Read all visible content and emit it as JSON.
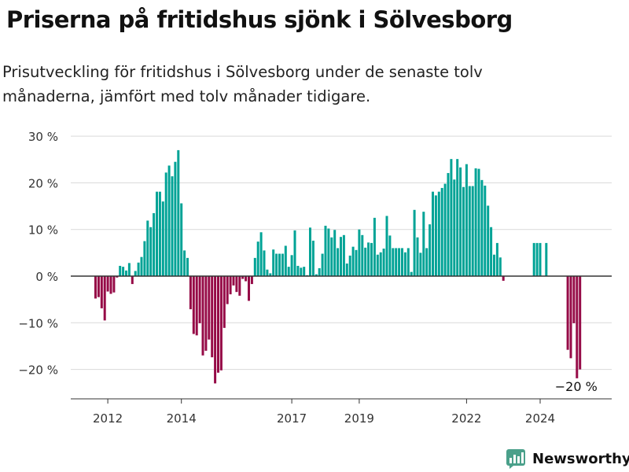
{
  "header": {
    "title": "Priserna på fritidshus sjönk i Sölvesborg",
    "subtitle": "Prisutveckling för fritidshus i Sölvesborg under de senaste tolv månaderna, jämfört med tolv månader tidigare."
  },
  "brand": {
    "name": "Newsworthy",
    "icon": "newsworthy-logo-icon",
    "color": "#4aa08a"
  },
  "colors": {
    "positive": "#00a396",
    "negative": "#960b47",
    "grid": "#d9d9d9",
    "zero": "#333333",
    "text": "#333333"
  },
  "chart_data": {
    "type": "bar",
    "title": "Priserna på fritidshus sjönk i Sölvesborg",
    "subtitle": "Prisutveckling för fritidshus i Sölvesborg under de senaste tolv månaderna, jämfört med tolv månader tidigare.",
    "xlabel": "",
    "ylabel": "",
    "ylim": [
      -26,
      30
    ],
    "y_ticks": [
      30,
      20,
      10,
      0,
      -10,
      -20
    ],
    "y_tick_labels": [
      "30 %",
      "20 %",
      "10 %",
      "0 %",
      "−10 %",
      "−20 %"
    ],
    "x_tick_labels": [
      "2012",
      "2014",
      "2017",
      "2019",
      "2022",
      "2024"
    ],
    "x_tick_index": [
      4,
      28,
      64,
      86,
      121,
      145
    ],
    "grid": true,
    "annotation": {
      "text": "−20 %",
      "index": 157
    },
    "values": [
      -4.8,
      -4.5,
      -6.9,
      -9.5,
      -3.3,
      -3.8,
      -3.5,
      -0.3,
      2.2,
      2.0,
      1.2,
      2.8,
      -1.7,
      1.1,
      2.9,
      4.1,
      7.5,
      11.9,
      10.5,
      13.5,
      18.1,
      18.1,
      16.0,
      22.2,
      23.7,
      21.4,
      24.5,
      27.0,
      15.6,
      5.5,
      3.9,
      -7.1,
      -12.4,
      -12.7,
      -10.1,
      -17.0,
      -16.0,
      -13.6,
      -17.4,
      -23.0,
      -20.7,
      -20.2,
      -11.1,
      -6.0,
      -3.9,
      -2.0,
      -3.4,
      -4.2,
      -0.6,
      -1.1,
      -5.3,
      -1.7,
      3.9,
      7.4,
      9.4,
      5.5,
      1.4,
      0.6,
      5.7,
      4.8,
      4.8,
      4.8,
      6.5,
      2.0,
      4.5,
      9.8,
      2.2,
      1.8,
      2.0,
      0.2,
      10.4,
      7.6,
      0.4,
      1.7,
      4.8,
      10.8,
      10.2,
      8.3,
      9.9,
      6.0,
      8.4,
      8.8,
      2.7,
      4.4,
      6.3,
      5.6,
      10.0,
      8.8,
      6.1,
      7.2,
      7.1,
      12.5,
      4.6,
      5.1,
      5.9,
      12.9,
      8.7,
      6.0,
      6.0,
      6.0,
      6.0,
      5.1,
      6.0,
      0.9,
      14.2,
      8.3,
      5.0,
      13.8,
      6.0,
      11.1,
      18.1,
      17.3,
      18.1,
      18.9,
      19.8,
      22.1,
      25.1,
      20.7,
      25.1,
      23.3,
      19.1,
      24.0,
      19.3,
      19.3,
      23.1,
      23.0,
      20.6,
      19.4,
      15.1,
      10.5,
      4.6,
      7.1,
      4.0,
      -1.0,
      null,
      null,
      null,
      null,
      null,
      null,
      null,
      null,
      null,
      7.1,
      7.1,
      7.1,
      null,
      7.1,
      null,
      null,
      null,
      null,
      null,
      null,
      -15.8,
      -17.6,
      -10.1,
      -21.9,
      -20.0
    ]
  }
}
